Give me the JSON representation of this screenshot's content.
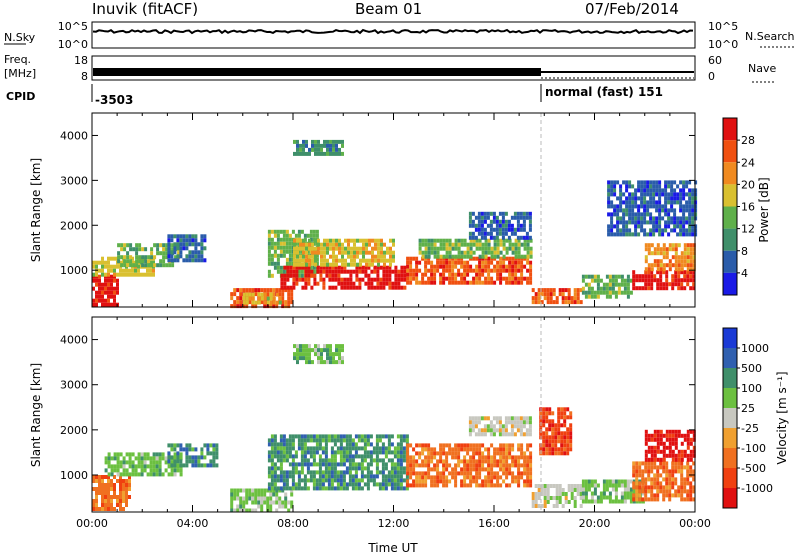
{
  "header": {
    "station": "Inuvik (fitACF)",
    "beam": "Beam 01",
    "date": "07/Feb/2014"
  },
  "status_panels": {
    "nsky": {
      "label": "N.Sky",
      "tick_top": "10^5",
      "tick_bottom": "10^0"
    },
    "nsearch": {
      "label": "N.Search",
      "tick_top": "10^5",
      "tick_bottom": "10^0"
    },
    "freq": {
      "label_line1": "Freq.",
      "label_line2": "[MHz]",
      "tick_top": "18",
      "tick_bottom": "8"
    },
    "nave": {
      "label": "Nave",
      "tick_top": "60",
      "tick_bottom": "0"
    },
    "cpid": {
      "label": "CPID",
      "segments": [
        {
          "text": "-3503",
          "start_hour": 0
        },
        {
          "text": "normal (fast) 151",
          "start_hour": 18
        }
      ]
    }
  },
  "chart_data": [
    {
      "type": "heatmap",
      "name": "power",
      "ylabel": "Slant Range [km]",
      "xlim": [
        0,
        24
      ],
      "ylim": [
        180,
        4500
      ],
      "y_ticks": [
        1000,
        2000,
        3000,
        4000
      ],
      "colorbar": {
        "label": "Power [dB]",
        "ticks": [
          "4",
          "8",
          "12",
          "16",
          "20",
          "24",
          "28"
        ],
        "colors": [
          "#1a1ae6",
          "#2a5caa",
          "#3f8f6a",
          "#5fb04a",
          "#d9c030",
          "#f08a20",
          "#f05010",
          "#e01010"
        ]
      },
      "regions": [
        {
          "x": [
            0.0,
            1.0
          ],
          "y": [
            250,
            900
          ],
          "level": 7
        },
        {
          "x": [
            0.0,
            2.5
          ],
          "y": [
            900,
            1300
          ],
          "level": 4
        },
        {
          "x": [
            1.0,
            3.5
          ],
          "y": [
            1100,
            1600
          ],
          "level": 3
        },
        {
          "x": [
            3.0,
            4.5
          ],
          "y": [
            1200,
            1800
          ],
          "level": 1
        },
        {
          "x": [
            5.5,
            8.0
          ],
          "y": [
            200,
            600
          ],
          "level": 6
        },
        {
          "x": [
            6.0,
            7.5
          ],
          "y": [
            300,
            500
          ],
          "level": 4
        },
        {
          "x": [
            7.0,
            9.0
          ],
          "y": [
            900,
            1900
          ],
          "level": 3
        },
        {
          "x": [
            7.5,
            12.5
          ],
          "y": [
            600,
            1100
          ],
          "level": 7
        },
        {
          "x": [
            8.0,
            12.0
          ],
          "y": [
            1100,
            1700
          ],
          "level": 4
        },
        {
          "x": [
            12.5,
            17.5
          ],
          "y": [
            700,
            1300
          ],
          "level": 6
        },
        {
          "x": [
            13.0,
            17.5
          ],
          "y": [
            1300,
            1700
          ],
          "level": 3
        },
        {
          "x": [
            15.0,
            17.5
          ],
          "y": [
            1700,
            2300
          ],
          "level": 1
        },
        {
          "x": [
            17.5,
            19.5
          ],
          "y": [
            300,
            600
          ],
          "level": 6
        },
        {
          "x": [
            19.5,
            21.5
          ],
          "y": [
            400,
            900
          ],
          "level": 3
        },
        {
          "x": [
            21.5,
            24.0
          ],
          "y": [
            600,
            1000
          ],
          "level": 7
        },
        {
          "x": [
            22.0,
            24.0
          ],
          "y": [
            1000,
            1600
          ],
          "level": 5
        },
        {
          "x": [
            20.5,
            24.0
          ],
          "y": [
            1800,
            3000
          ],
          "level": 1
        },
        {
          "x": [
            8.0,
            10.0
          ],
          "y": [
            3600,
            3900
          ],
          "level": 2
        }
      ]
    },
    {
      "type": "heatmap",
      "name": "velocity",
      "ylabel": "Slant Range [km]",
      "xlabel": "Time UT",
      "xlim": [
        0,
        24
      ],
      "ylim": [
        180,
        4500
      ],
      "y_ticks": [
        1000,
        2000,
        3000,
        4000
      ],
      "x_ticks": [
        "00:00",
        "04:00",
        "08:00",
        "12:00",
        "16:00",
        "20:00",
        "00:00"
      ],
      "colorbar": {
        "label": "Velocity [m s⁻¹]",
        "ticks": [
          "1000",
          "500",
          "100",
          "25",
          "-25",
          "-100",
          "-500",
          "-1000"
        ],
        "colors": [
          "#1a3ad6",
          "#3060b0",
          "#3f8f6a",
          "#6cc040",
          "#c8c8c0",
          "#f0a030",
          "#f07020",
          "#f04010",
          "#e01010"
        ]
      },
      "regions": [
        {
          "x": [
            0.0,
            1.5
          ],
          "y": [
            250,
            1000
          ],
          "level": 6
        },
        {
          "x": [
            0.5,
            3.5
          ],
          "y": [
            1000,
            1500
          ],
          "level": 3
        },
        {
          "x": [
            3.0,
            5.0
          ],
          "y": [
            1200,
            1700
          ],
          "level": 2
        },
        {
          "x": [
            5.5,
            8.0
          ],
          "y": [
            200,
            700
          ],
          "level": 3
        },
        {
          "x": [
            7.0,
            12.5
          ],
          "y": [
            700,
            1900
          ],
          "level": 2
        },
        {
          "x": [
            12.5,
            17.5
          ],
          "y": [
            800,
            1700
          ],
          "level": 6
        },
        {
          "x": [
            15.0,
            17.5
          ],
          "y": [
            1900,
            2300
          ],
          "level": 4
        },
        {
          "x": [
            17.5,
            19.5
          ],
          "y": [
            300,
            800
          ],
          "level": 4
        },
        {
          "x": [
            17.8,
            19.0
          ],
          "y": [
            1500,
            2500
          ],
          "level": 7
        },
        {
          "x": [
            19.5,
            22.0
          ],
          "y": [
            400,
            900
          ],
          "level": 3
        },
        {
          "x": [
            21.5,
            24.0
          ],
          "y": [
            500,
            1300
          ],
          "level": 6
        },
        {
          "x": [
            22.0,
            24.0
          ],
          "y": [
            1300,
            2000
          ],
          "level": 8
        },
        {
          "x": [
            8.0,
            10.0
          ],
          "y": [
            3500,
            3900
          ],
          "level": 3
        }
      ]
    }
  ],
  "colors": {
    "frame": "#000000",
    "boundary_line": "#bbbbbb"
  }
}
